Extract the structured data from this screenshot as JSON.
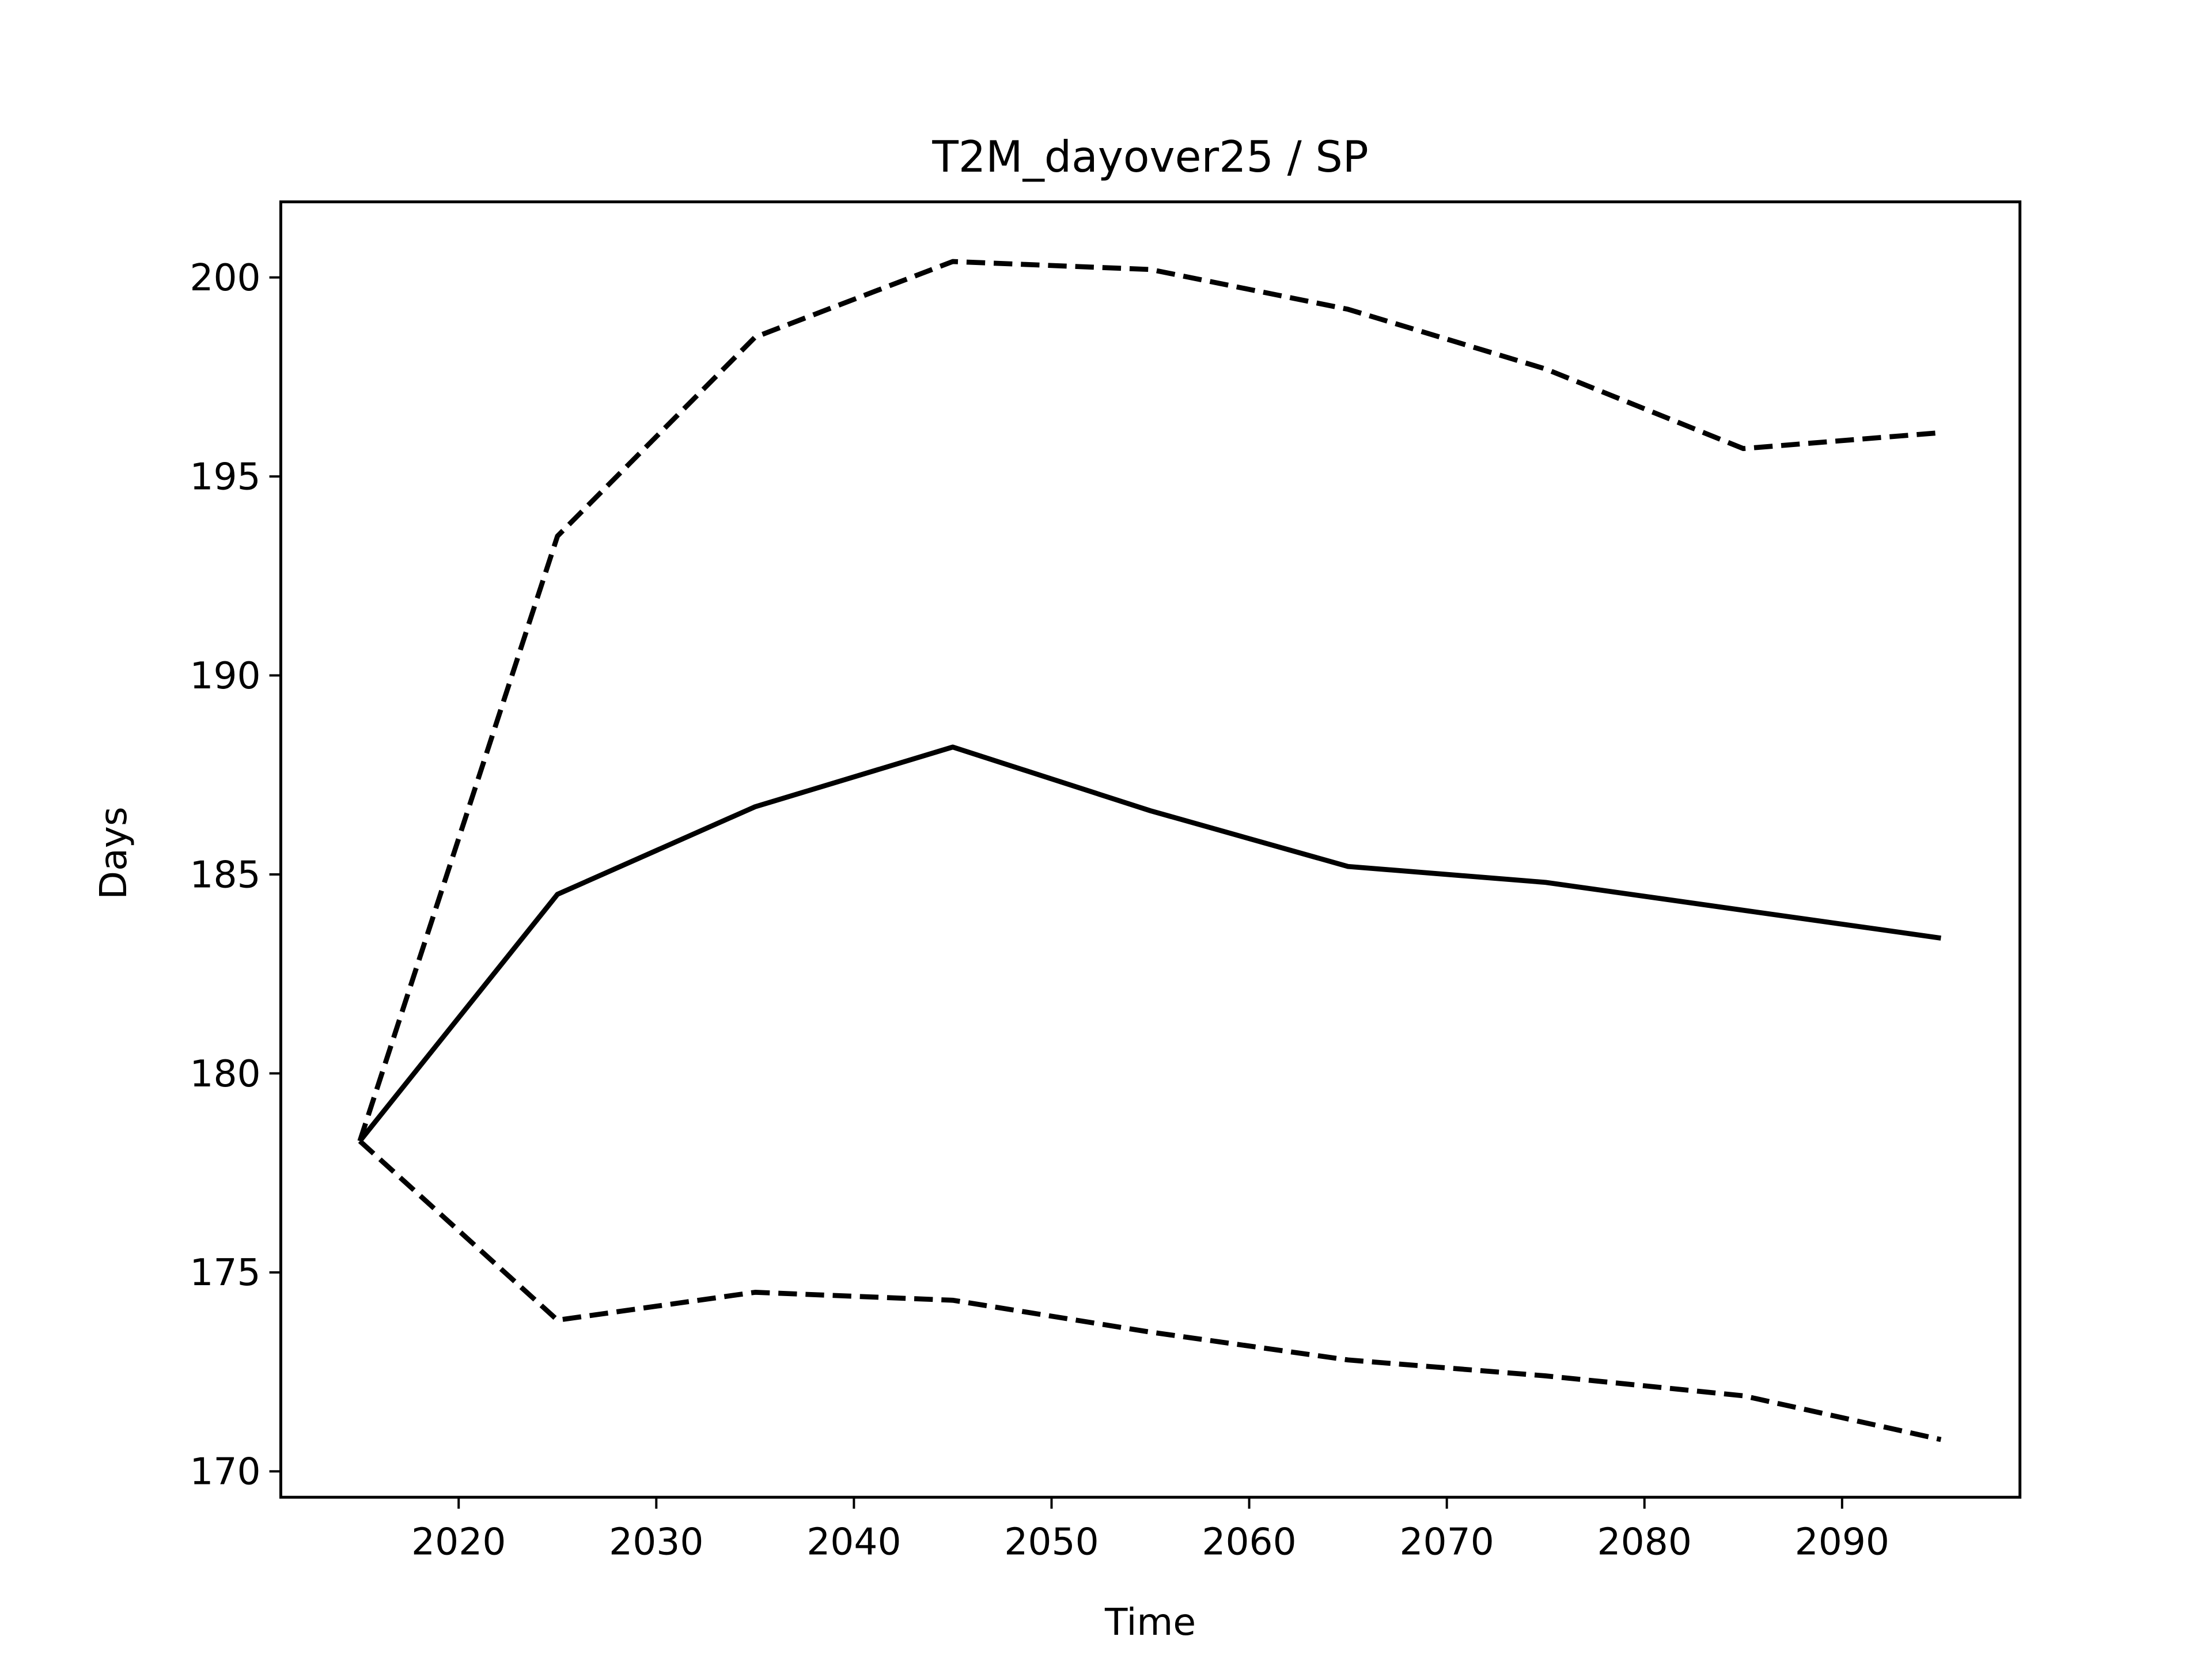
{
  "chart_data": {
    "type": "line",
    "title": "T2M_dayover25 / SP",
    "xlabel": "Time",
    "ylabel": "Days",
    "xlim": [
      2011,
      2099
    ],
    "ylim": [
      169.35,
      201.9
    ],
    "xticks": [
      2020,
      2030,
      2040,
      2050,
      2060,
      2070,
      2080,
      2090
    ],
    "yticks": [
      170,
      175,
      180,
      185,
      190,
      195,
      200
    ],
    "grid": false,
    "x": [
      2015,
      2025,
      2035,
      2045,
      2055,
      2065,
      2075,
      2085,
      2095
    ],
    "series": [
      {
        "style": "solid",
        "color": "#000000",
        "values": [
          178.3,
          184.5,
          186.7,
          188.2,
          186.6,
          185.2,
          184.8,
          184.1,
          183.4
        ]
      },
      {
        "style": "dashed",
        "color": "#000000",
        "values": [
          178.3,
          193.5,
          198.5,
          200.4,
          200.2,
          199.2,
          197.7,
          195.7,
          196.1
        ]
      },
      {
        "style": "dashed",
        "color": "#000000",
        "values": [
          178.3,
          173.8,
          174.5,
          174.3,
          173.5,
          172.8,
          172.4,
          171.9,
          170.8
        ]
      }
    ]
  }
}
